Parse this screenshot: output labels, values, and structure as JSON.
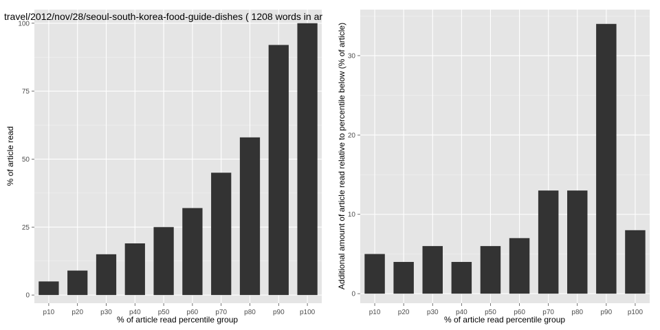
{
  "chart_data": [
    {
      "type": "bar",
      "title": "travel/2012/nov/28/seoul-south-korea-food-guide-dishes ( 1208 words in ar",
      "xlabel": "% of article read percentile group",
      "ylabel": "% of article read",
      "categories": [
        "p10",
        "p20",
        "p30",
        "p40",
        "p50",
        "p60",
        "p70",
        "p80",
        "p90",
        "p100"
      ],
      "values": [
        5,
        9,
        15,
        19,
        25,
        32,
        45,
        58,
        92,
        100
      ],
      "ylim": [
        -3,
        105
      ],
      "yticks": [
        0,
        25,
        50,
        75,
        100
      ],
      "ytick_labels": [
        "0",
        "25",
        "50",
        "75",
        "100"
      ],
      "bar_color": "#333333",
      "background": "#e5e5e5",
      "grid": true
    },
    {
      "type": "bar",
      "title": "",
      "xlabel": "% of article read percentile group",
      "ylabel": "Additional amount of article read relative to percentile below (% of article)",
      "categories": [
        "p10",
        "p20",
        "p30",
        "p40",
        "p50",
        "p60",
        "p70",
        "p80",
        "p90",
        "p100"
      ],
      "values": [
        5,
        4,
        6,
        4,
        6,
        7,
        13,
        13,
        34,
        8
      ],
      "ylim": [
        -1.2,
        35.8
      ],
      "yticks": [
        0,
        10,
        20,
        30
      ],
      "ytick_labels": [
        "0",
        "10",
        "20",
        "30"
      ],
      "bar_color": "#333333",
      "background": "#e5e5e5",
      "grid": true
    }
  ]
}
